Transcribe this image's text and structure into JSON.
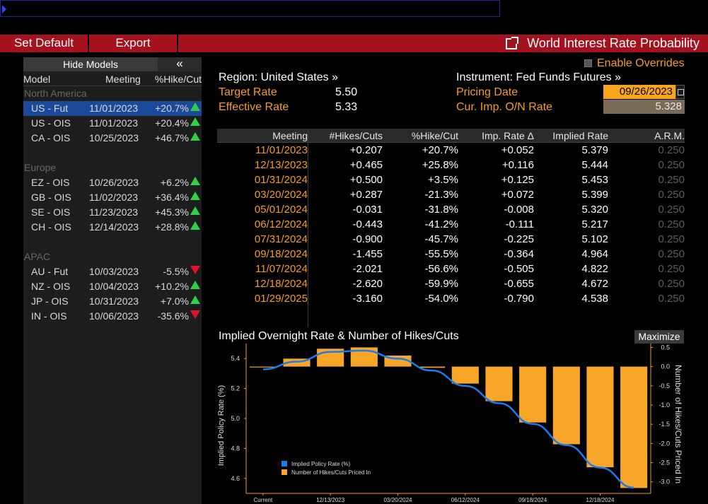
{
  "toolbar": {
    "set_default": "Set Default",
    "export": "Export",
    "title": "World Interest Rate Probability"
  },
  "left": {
    "hide_models": "Hide Models",
    "collapse_glyph": "«",
    "columns": {
      "model": "Model",
      "meeting": "Meeting",
      "pct": "%Hike/Cut"
    },
    "groups": [
      {
        "name": "North America",
        "rows": [
          {
            "model": "US - Fut",
            "meeting": "11/01/2023",
            "pct": "+20.7%",
            "dir": "up",
            "selected": true
          },
          {
            "model": "US - OIS",
            "meeting": "11/01/2023",
            "pct": "+20.4%",
            "dir": "up"
          },
          {
            "model": "CA - OIS",
            "meeting": "10/25/2023",
            "pct": "+46.7%",
            "dir": "up"
          }
        ]
      },
      {
        "name": "Europe",
        "rows": [
          {
            "model": "EZ - OIS",
            "meeting": "10/26/2023",
            "pct": "+6.2%",
            "dir": "up"
          },
          {
            "model": "GB - OIS",
            "meeting": "11/02/2023",
            "pct": "+36.4%",
            "dir": "up"
          },
          {
            "model": "SE - OIS",
            "meeting": "11/23/2023",
            "pct": "+45.3%",
            "dir": "up"
          },
          {
            "model": "CH - OIS",
            "meeting": "12/14/2023",
            "pct": "+28.8%",
            "dir": "up"
          }
        ]
      },
      {
        "name": "APAC",
        "rows": [
          {
            "model": "AU - Fut",
            "meeting": "10/03/2023",
            "pct": "-5.5%",
            "dir": "down"
          },
          {
            "model": "NZ - OIS",
            "meeting": "10/04/2023",
            "pct": "+10.2%",
            "dir": "up"
          },
          {
            "model": "JP - OIS",
            "meeting": "10/31/2023",
            "pct": "+7.0%",
            "dir": "up"
          },
          {
            "model": "IN - OIS",
            "meeting": "10/06/2023",
            "pct": "-35.6%",
            "dir": "down"
          }
        ]
      }
    ]
  },
  "info": {
    "enable_overrides": "Enable Overrides",
    "region": "Region: United States »",
    "instrument": "Instrument: Fed Funds Futures »",
    "target_label": "Target Rate",
    "target_value": "5.50",
    "effective_label": "Effective Rate",
    "effective_value": "5.33",
    "pricing_label": "Pricing Date",
    "pricing_value": "09/26/2023",
    "curimp_label": "Cur. Imp. O/N Rate",
    "curimp_value": "5.328"
  },
  "table": {
    "headers": [
      "Meeting",
      "#Hikes/Cuts",
      "%Hike/Cut",
      "Imp. Rate Δ",
      "Implied Rate",
      "A.R.M."
    ],
    "rows": [
      [
        "11/01/2023",
        "+0.207",
        "+20.7%",
        "+0.052",
        "5.379",
        "0.250"
      ],
      [
        "12/13/2023",
        "+0.465",
        "+25.8%",
        "+0.116",
        "5.444",
        "0.250"
      ],
      [
        "01/31/2024",
        "+0.500",
        "+3.5%",
        "+0.125",
        "5.453",
        "0.250"
      ],
      [
        "03/20/2024",
        "+0.287",
        "-21.3%",
        "+0.072",
        "5.399",
        "0.250"
      ],
      [
        "05/01/2024",
        "-0.031",
        "-31.8%",
        "-0.008",
        "5.320",
        "0.250"
      ],
      [
        "06/12/2024",
        "-0.443",
        "-41.2%",
        "-0.111",
        "5.217",
        "0.250"
      ],
      [
        "07/31/2024",
        "-0.900",
        "-45.7%",
        "-0.225",
        "5.102",
        "0.250"
      ],
      [
        "09/18/2024",
        "-1.455",
        "-55.5%",
        "-0.364",
        "4.964",
        "0.250"
      ],
      [
        "11/07/2024",
        "-2.021",
        "-56.6%",
        "-0.505",
        "4.822",
        "0.250"
      ],
      [
        "12/18/2024",
        "-2.620",
        "-59.9%",
        "-0.655",
        "4.672",
        "0.250"
      ],
      [
        "01/29/2025",
        "-3.160",
        "-54.0%",
        "-0.790",
        "4.538",
        "0.250"
      ]
    ]
  },
  "chart": {
    "maximize": "Maximize"
  },
  "chart_data": {
    "type": "bar",
    "title": "Implied Overnight Rate & Number of Hikes/Cuts",
    "ylabel": "Implied Policy Rate (%)",
    "y2label": "Number of Hikes/Cuts Priced In",
    "ylim": [
      4.5,
      5.5
    ],
    "y2lim": [
      -3.3,
      0.6
    ],
    "yticks": [
      "5.4",
      "5.2",
      "5.0",
      "4.8",
      "4.6"
    ],
    "y2ticks": [
      "0.5",
      "0.0",
      "-0.5",
      "-1.0",
      "-1.5",
      "-2.0",
      "-2.5",
      "-3.0"
    ],
    "xticks": [
      "Current",
      "12/13/2023",
      "03/20/2024",
      "06/12/2024",
      "09/18/2024",
      "12/18/2024"
    ],
    "categories": [
      "Current",
      "11/01/2023",
      "12/13/2023",
      "01/31/2024",
      "03/20/2024",
      "05/01/2024",
      "06/12/2024",
      "07/31/2024",
      "09/18/2024",
      "11/07/2024",
      "12/18/2024",
      "01/29/2025"
    ],
    "series": [
      {
        "name": "Implied Policy Rate (%)",
        "kind": "line",
        "color": "#1a7cf0",
        "values": [
          5.328,
          5.379,
          5.444,
          5.453,
          5.399,
          5.32,
          5.217,
          5.102,
          4.964,
          4.822,
          4.672,
          4.538
        ]
      },
      {
        "name": "Number of Hikes/Cuts Priced In",
        "kind": "bar",
        "color": "#f8a628",
        "values": [
          0,
          0.207,
          0.465,
          0.5,
          0.287,
          -0.031,
          -0.443,
          -0.9,
          -1.455,
          -2.021,
          -2.62,
          -3.16
        ]
      }
    ],
    "legend_position": "bottom-left"
  }
}
